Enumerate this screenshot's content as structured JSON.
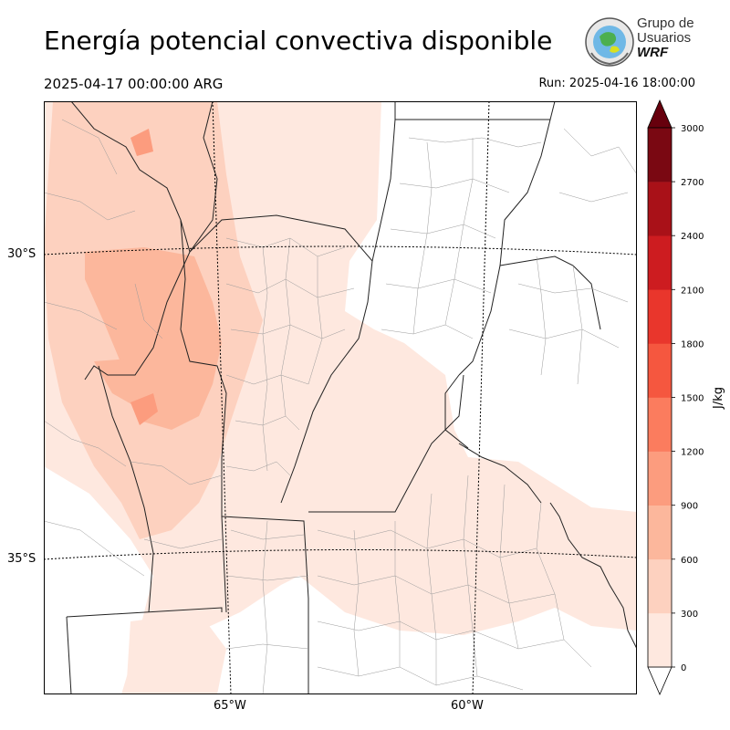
{
  "header": {
    "title": "Energía potencial convectiva disponible",
    "valid_time": "2025-04-17 00:00:00 ARG",
    "run_time": "Run: 2025-04-16 18:00:00"
  },
  "logo": {
    "line1": "Grupo de",
    "line2": "Usuarios",
    "line3": "WRF"
  },
  "map": {
    "lat_labels": [
      "30°S",
      "35°S"
    ],
    "lon_labels": [
      "65°W",
      "60°W"
    ]
  },
  "colorbar": {
    "unit": "J/kg",
    "ticks": [
      "0",
      "300",
      "600",
      "900",
      "1200",
      "1500",
      "1800",
      "2100",
      "2400",
      "2700",
      "3000"
    ],
    "colors": [
      "#fee8df",
      "#fdd1bf",
      "#fcb79c",
      "#fc9c7e",
      "#fb7c5e",
      "#f5573f",
      "#e9362c",
      "#cd1c20",
      "#a91118",
      "#7a0812"
    ],
    "over_color": "#67000d"
  }
}
